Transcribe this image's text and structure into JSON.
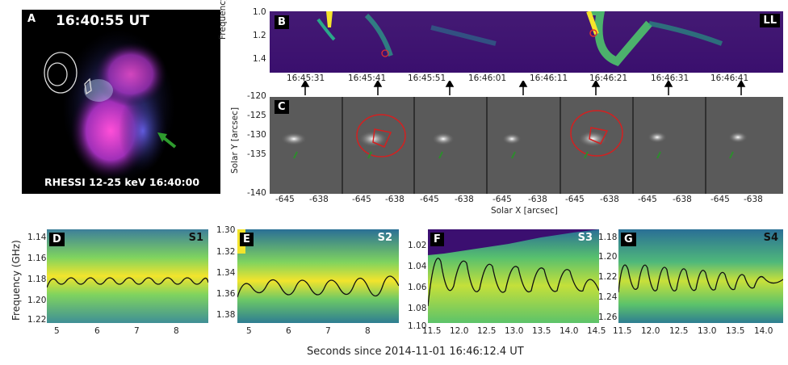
{
  "panelA": {
    "label": "A",
    "time": "16:40:55 UT",
    "caption": "RHESSI 12-25 keV 16:40:00"
  },
  "panelB": {
    "label": "B",
    "pol": "LL",
    "ylabel": "Frequency [GHz]",
    "yticks": [
      "1.0",
      "1.2",
      "1.4"
    ],
    "times": [
      "16:45:31",
      "16:45:41",
      "16:45:51",
      "16:46:01",
      "16:46:11",
      "16:46:21",
      "16:46:31",
      "16:46:41"
    ]
  },
  "panelC": {
    "label": "C",
    "ylabel": "Solar Y [arcsec]",
    "xlabel": "Solar X [arcsec]",
    "yticks": [
      "-120",
      "-125",
      "-130",
      "-135",
      "-140"
    ],
    "xticks": [
      "-645",
      "-638"
    ]
  },
  "bottom": {
    "ylabel": "Frequency (GHz)",
    "xlabel": "Seconds since 2014-11-01 16:46:12.4 UT",
    "panels": [
      {
        "label": "D",
        "name": "S1",
        "yticks": [
          "1.14",
          "1.16",
          "1.18",
          "1.20",
          "1.22"
        ],
        "xticks": [
          "5",
          "6",
          "7",
          "8"
        ]
      },
      {
        "label": "E",
        "name": "S2",
        "yticks": [
          "1.30",
          "1.32",
          "1.34",
          "1.36",
          "1.38"
        ],
        "xticks": [
          "5",
          "6",
          "7",
          "8"
        ]
      },
      {
        "label": "F",
        "name": "S3",
        "yticks": [
          "1.02",
          "1.04",
          "1.06",
          "1.08",
          "1.10"
        ],
        "xticks": [
          "11.5",
          "12.0",
          "12.5",
          "13.0",
          "13.5",
          "14.0",
          "14.5"
        ]
      },
      {
        "label": "G",
        "name": "S4",
        "yticks": [
          "1.18",
          "1.20",
          "1.22",
          "1.24",
          "1.26"
        ],
        "xticks": [
          "11.5",
          "12.0",
          "12.5",
          "13.0",
          "13.5",
          "14.0"
        ]
      }
    ]
  },
  "colors": {
    "viridis_dark": "#3b0f70",
    "viridis_yellow": "#f5e52b",
    "contour_red": "#d42020",
    "arrow_green": "#2e8b2e"
  }
}
